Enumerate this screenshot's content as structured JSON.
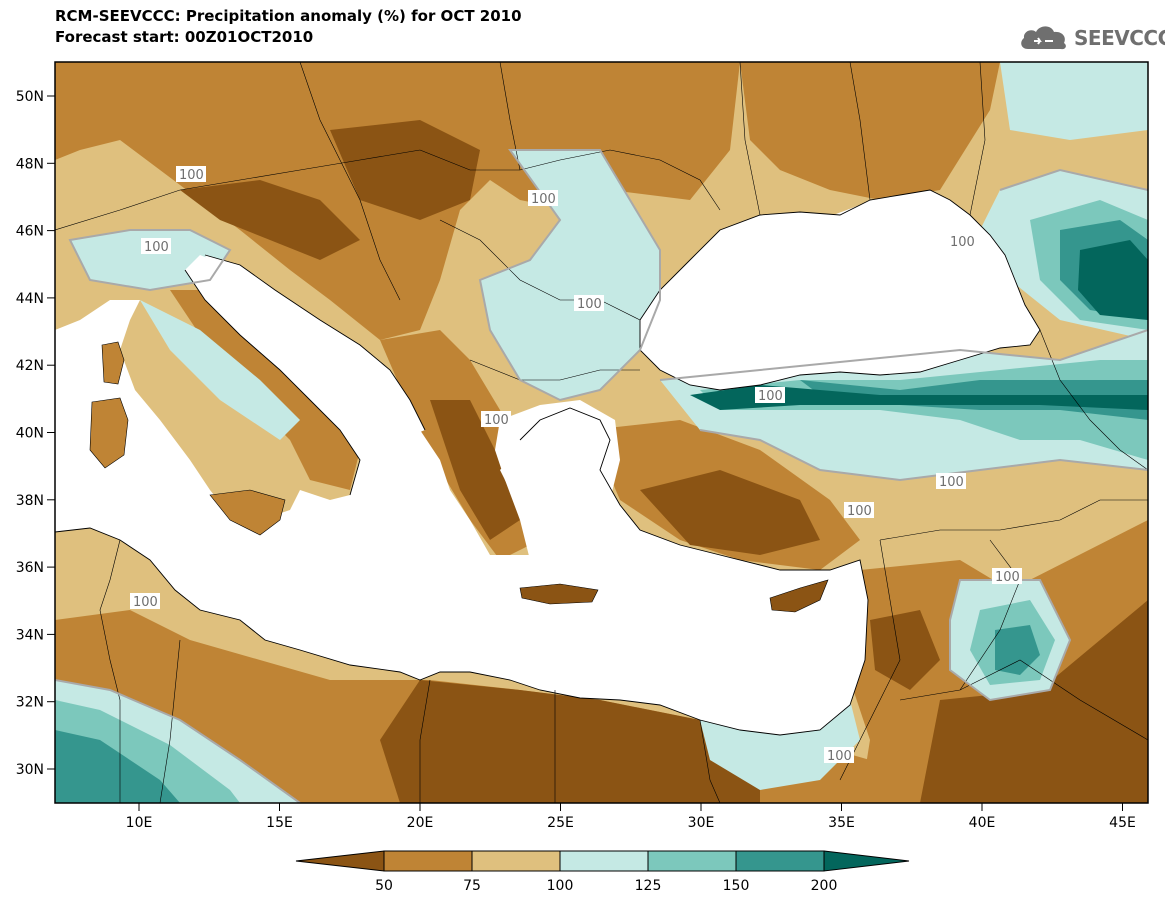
{
  "header": {
    "title_line1": "RCM-SEEVCCC: Precipitation anomaly (%) for OCT 2010",
    "title_line2": "Forecast start: 00Z01OCT2010"
  },
  "logo": {
    "text": "SEEVCCC",
    "icon": "cloud-icon"
  },
  "map": {
    "lon_ticks": [
      "10E",
      "15E",
      "20E",
      "25E",
      "30E",
      "35E",
      "40E",
      "45E"
    ],
    "lat_ticks": [
      "50N",
      "48N",
      "46N",
      "44N",
      "42N",
      "40N",
      "38N",
      "36N",
      "34N",
      "32N",
      "30N"
    ],
    "contour_label": "100"
  },
  "colorbar": {
    "levels": [
      "50",
      "75",
      "100",
      "125",
      "150",
      "200"
    ],
    "colors": [
      "#8b5414",
      "#bf8435",
      "#dfc07e",
      "#c5e9e4",
      "#7cc8bc",
      "#35968e",
      "#03665c"
    ]
  },
  "colors": {
    "land_dark": "#8b5414",
    "land_mid": "#bf8435",
    "land_light": "#dfc07e",
    "wet_light": "#c5e9e4",
    "wet_mid": "#7cc8bc",
    "wet_dark": "#35968e",
    "wet_darkest": "#03665c",
    "sea": "#ffffff"
  }
}
